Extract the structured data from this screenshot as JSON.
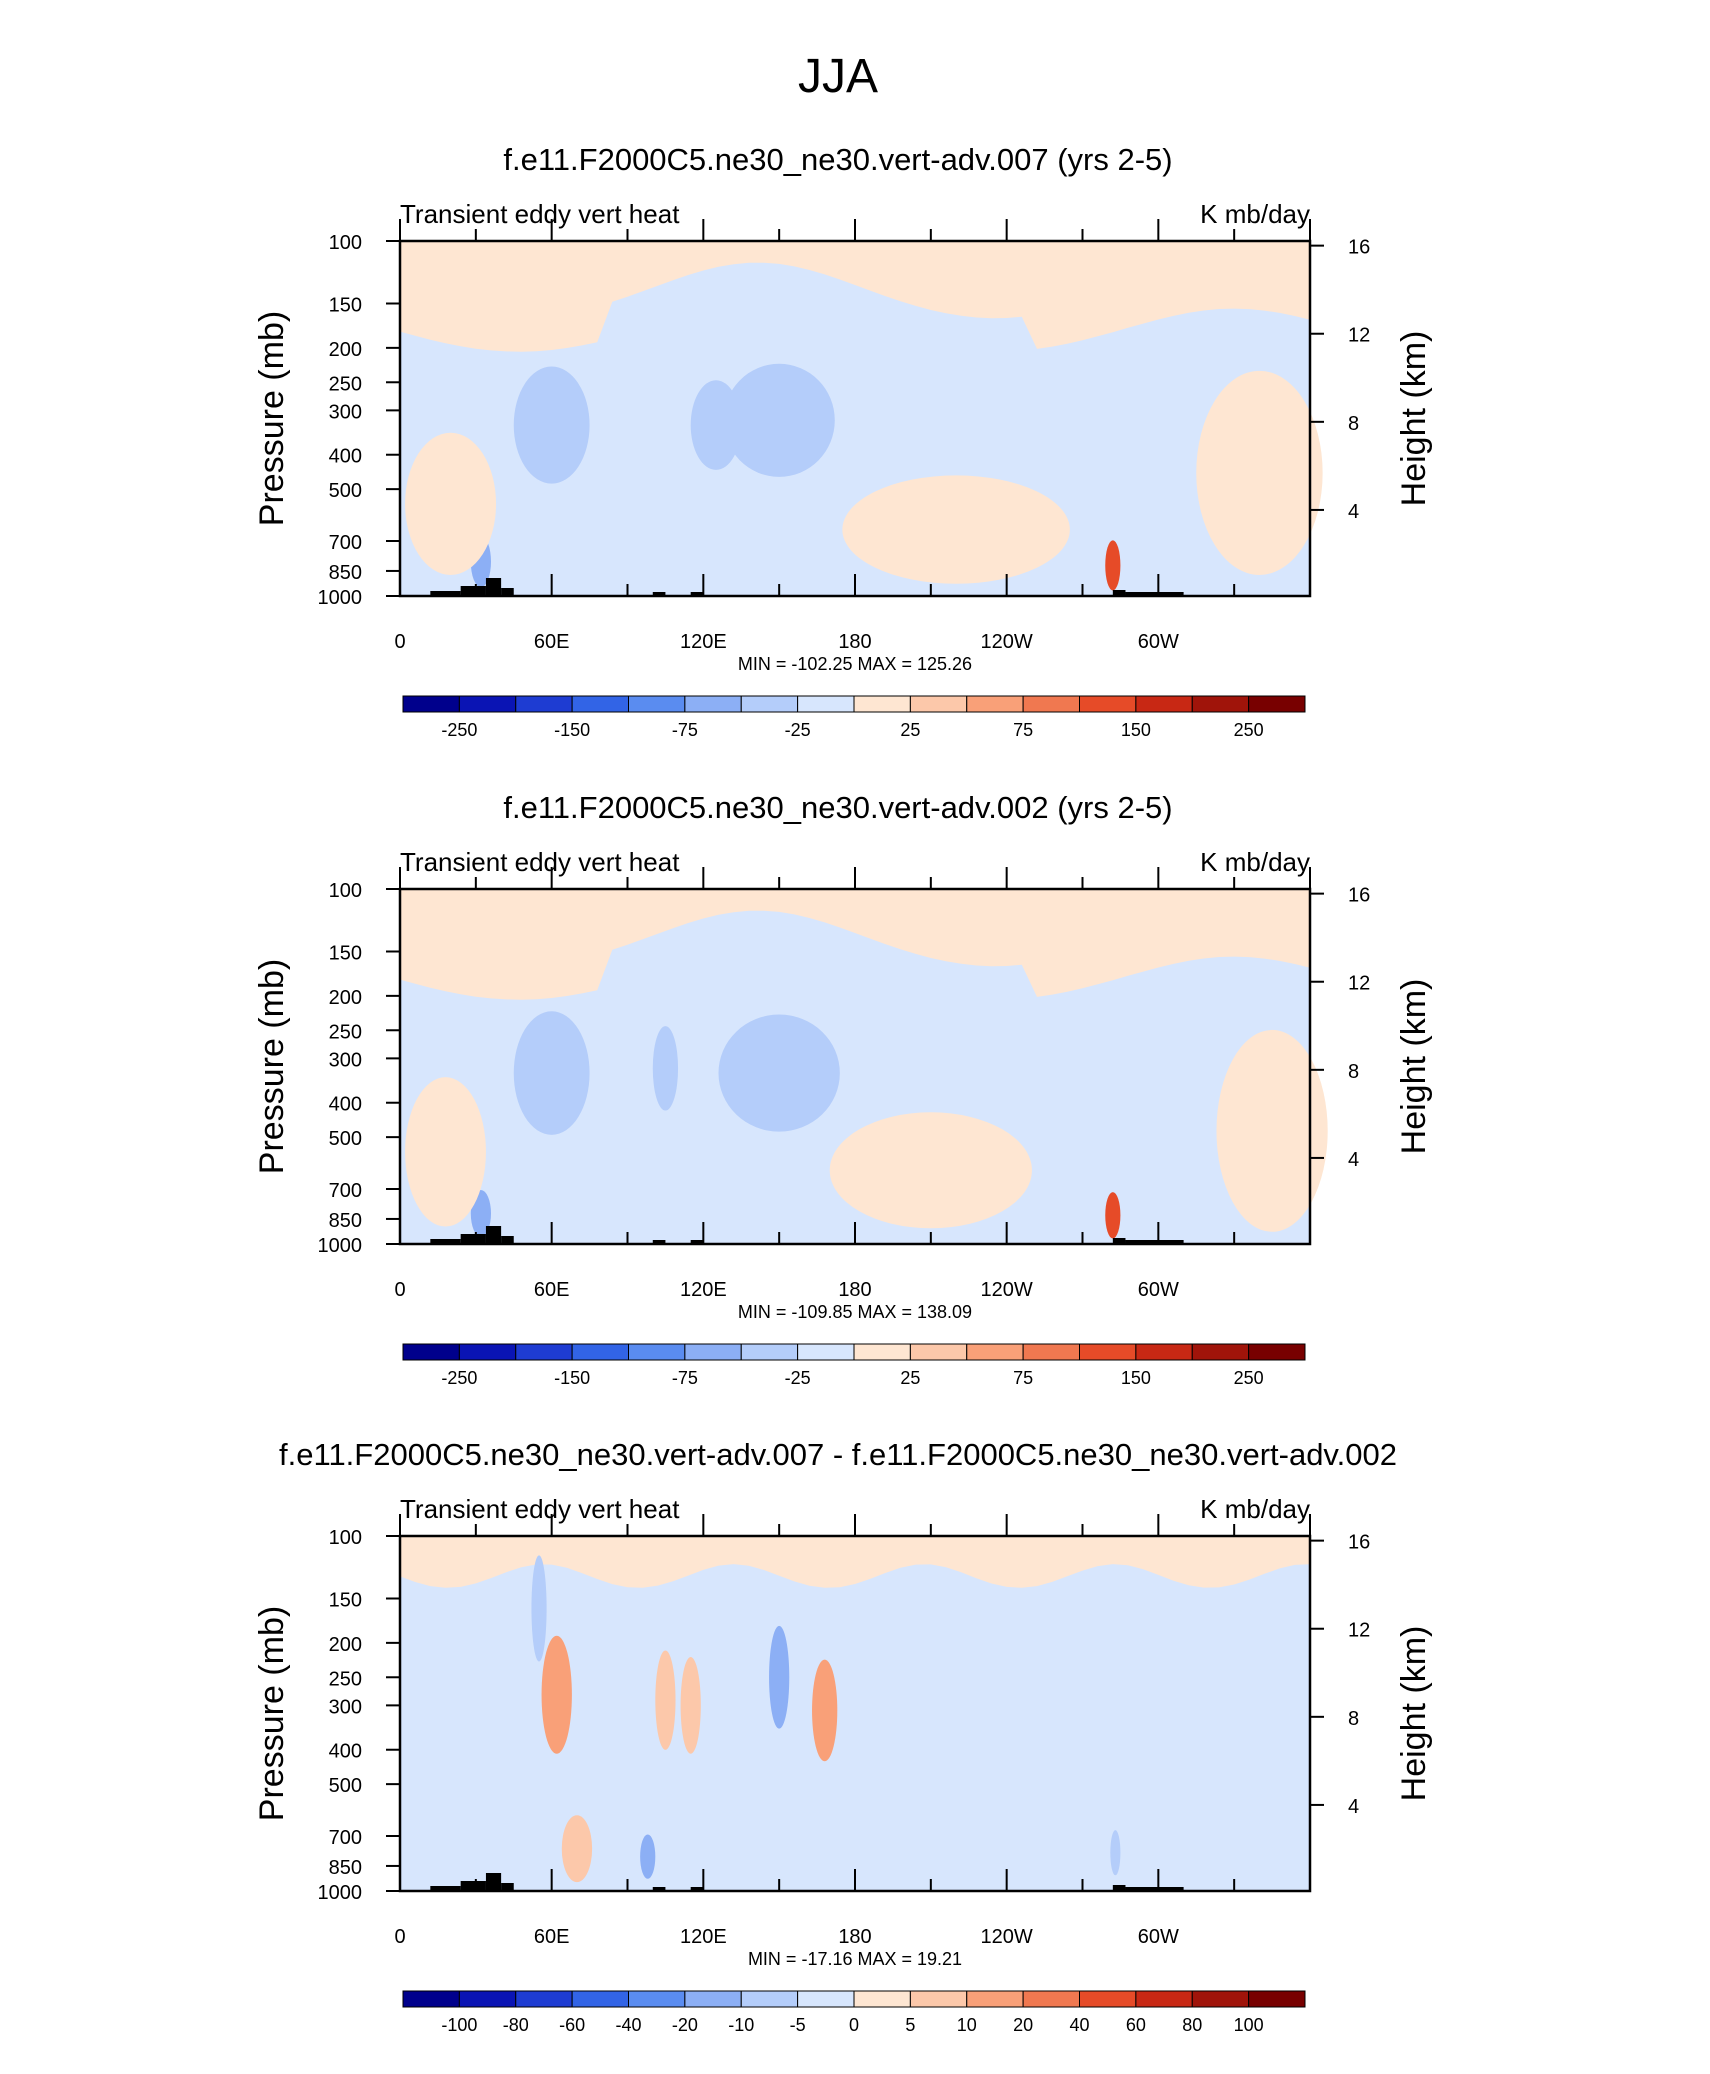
{
  "figure": {
    "title": "JJA"
  },
  "panel_labels": {
    "left": "Transient eddy vert heat",
    "right": "K mb/day"
  },
  "axes": {
    "ylabel_left": "Pressure (mb)",
    "ylabel_right": "Height (km)",
    "pressure_ticks": [
      100,
      150,
      200,
      250,
      300,
      400,
      500,
      700,
      850,
      1000
    ],
    "height_ticks": [
      16,
      12,
      8,
      4
    ],
    "lon_ticks": [
      "0",
      "60E",
      "120E",
      "180",
      "120W",
      "60W"
    ]
  },
  "colors": {
    "levels_abs": [
      "#00008c",
      "#0a14b4",
      "#1e3cd2",
      "#3264e6",
      "#5a8cf0",
      "#8caff5",
      "#b4cdfa",
      "#d7e6fd",
      "#fee6d2",
      "#fcc8aa",
      "#f9a078",
      "#f07850",
      "#e64b28",
      "#c82814",
      "#a0140a",
      "#780000"
    ],
    "levels_diff": [
      "#00008c",
      "#0a14b4",
      "#1e3cd2",
      "#3264e6",
      "#5a8cf0",
      "#8caff5",
      "#b4cdfa",
      "#d7e6fd",
      "#fee6d2",
      "#fcc8aa",
      "#f9a078",
      "#f07850",
      "#e64b28",
      "#c82814",
      "#a0140a",
      "#780000"
    ]
  },
  "chart_data": [
    {
      "type": "heatmap",
      "title": "f.e11.F2000C5.ne30_ne30.vert-adv.007 (yrs 2-5)",
      "stats": "MIN = -102.25  MAX = 125.26",
      "colorbar_labels": [
        "-250",
        "-150",
        "-75",
        "-25",
        "25",
        "75",
        "150",
        "250"
      ],
      "blobs": [
        {
          "lon": 60,
          "p": 300,
          "dlon": 10,
          "dp": 60,
          "value": -95
        },
        {
          "lon": 60,
          "p": 330,
          "dlon": 15,
          "dp": 140,
          "value": -45
        },
        {
          "lon": 150,
          "p": 320,
          "dlon": 22,
          "dp": 130,
          "value": -32
        },
        {
          "lon": 125,
          "p": 330,
          "dlon": 10,
          "dp": 100,
          "value": -30
        },
        {
          "lon": 32,
          "p": 800,
          "dlon": 4,
          "dp": 120,
          "value": -60
        },
        {
          "lon": 282,
          "p": 820,
          "dlon": 3,
          "dp": 120,
          "value": 110
        },
        {
          "lon": 220,
          "p": 650,
          "dlon": 45,
          "dp": 250,
          "value": 12
        },
        {
          "lon": 340,
          "p": 450,
          "dlon": 25,
          "dp": 400,
          "value": 10
        },
        {
          "lon": 20,
          "p": 550,
          "dlon": 18,
          "dp": 300,
          "value": 8
        }
      ]
    },
    {
      "type": "heatmap",
      "title": "f.e11.F2000C5.ne30_ne30.vert-adv.002 (yrs 2-5)",
      "stats": "MIN = -109.85  MAX = 138.09",
      "colorbar_labels": [
        "-250",
        "-150",
        "-75",
        "-25",
        "25",
        "75",
        "150",
        "250"
      ],
      "blobs": [
        {
          "lon": 60,
          "p": 300,
          "dlon": 10,
          "dp": 70,
          "value": -105
        },
        {
          "lon": 60,
          "p": 330,
          "dlon": 15,
          "dp": 150,
          "value": -48
        },
        {
          "lon": 150,
          "p": 330,
          "dlon": 24,
          "dp": 140,
          "value": -33
        },
        {
          "lon": 105,
          "p": 320,
          "dlon": 5,
          "dp": 90,
          "value": -28
        },
        {
          "lon": 32,
          "p": 820,
          "dlon": 4,
          "dp": 110,
          "value": -60
        },
        {
          "lon": 282,
          "p": 830,
          "dlon": 3,
          "dp": 110,
          "value": 130
        },
        {
          "lon": 210,
          "p": 620,
          "dlon": 40,
          "dp": 260,
          "value": 12
        },
        {
          "lon": 345,
          "p": 480,
          "dlon": 22,
          "dp": 420,
          "value": 10
        },
        {
          "lon": 18,
          "p": 550,
          "dlon": 16,
          "dp": 320,
          "value": 8
        }
      ]
    },
    {
      "type": "heatmap",
      "title": "f.e11.F2000C5.ne30_ne30.vert-adv.007 - f.e11.F2000C5.ne30_ne30.vert-adv.002",
      "stats": "MIN = -17.16  MAX =  19.21",
      "colorbar_labels": [
        "-100",
        "-80",
        "-60",
        "-40",
        "-20",
        "-10",
        "-5",
        "0",
        "5",
        "10",
        "20",
        "40",
        "60",
        "80",
        "100"
      ],
      "blobs": [
        {
          "lon": 62,
          "p": 280,
          "dlon": 6,
          "dp": 120,
          "value": 14
        },
        {
          "lon": 150,
          "p": 250,
          "dlon": 4,
          "dp": 90,
          "value": -15
        },
        {
          "lon": 168,
          "p": 310,
          "dlon": 5,
          "dp": 110,
          "value": 12
        },
        {
          "lon": 105,
          "p": 290,
          "dlon": 4,
          "dp": 100,
          "value": 10
        },
        {
          "lon": 115,
          "p": 300,
          "dlon": 4,
          "dp": 100,
          "value": 9
        },
        {
          "lon": 98,
          "p": 800,
          "dlon": 3,
          "dp": 100,
          "value": -14
        },
        {
          "lon": 70,
          "p": 760,
          "dlon": 6,
          "dp": 160,
          "value": 8
        },
        {
          "lon": 55,
          "p": 160,
          "dlon": 3,
          "dp": 60,
          "value": -8
        },
        {
          "lon": 283,
          "p": 780,
          "dlon": 2,
          "dp": 100,
          "value": -9
        }
      ]
    }
  ]
}
